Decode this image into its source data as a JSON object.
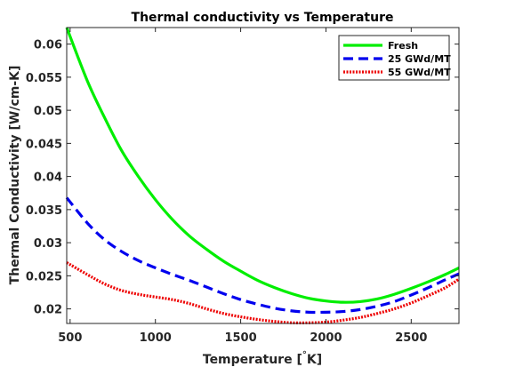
{
  "chart_data": {
    "type": "line",
    "title": "Thermal conductivity vs Temperature",
    "xlabel": "Temperature [",
    "xlabel_unit": "K]",
    "xlabel_symbol": "°",
    "ylabel": "Thermal Conductivity [W/cm-K]",
    "xlim": [
      480,
      2780
    ],
    "ylim": [
      0.0178,
      0.0625
    ],
    "xticks": [
      500,
      1000,
      1500,
      2000,
      2500
    ],
    "yticks": [
      0.02,
      0.025,
      0.03,
      0.035,
      0.04,
      0.045,
      0.05,
      0.055,
      0.06
    ],
    "ytick_labels": [
      "0.02",
      "0.025",
      "0.03",
      "0.035",
      "0.04",
      "0.045",
      "0.05",
      "0.055",
      "0.06"
    ],
    "xtick_labels": [
      "500",
      "1000",
      "1500",
      "2000",
      "2500"
    ],
    "legend_position": "top-right",
    "grid": false,
    "series": [
      {
        "name": "Fresh",
        "color": "#00ee00",
        "dash": "solid",
        "x": [
          480,
          600,
          700,
          800,
          900,
          1000,
          1100,
          1200,
          1300,
          1400,
          1500,
          1600,
          1700,
          1800,
          1900,
          2000,
          2100,
          2200,
          2300,
          2400,
          2500,
          2600,
          2700,
          2780
        ],
        "y": [
          0.0625,
          0.0545,
          0.049,
          0.044,
          0.04,
          0.0365,
          0.0335,
          0.031,
          0.029,
          0.0272,
          0.0257,
          0.0243,
          0.0232,
          0.0223,
          0.0216,
          0.0212,
          0.021,
          0.0211,
          0.0215,
          0.0222,
          0.0231,
          0.0241,
          0.0252,
          0.0262
        ]
      },
      {
        "name": "25 GWd/MT",
        "color": "#0000ee",
        "dash": "dashed",
        "x": [
          480,
          600,
          700,
          800,
          900,
          1000,
          1100,
          1200,
          1300,
          1400,
          1500,
          1600,
          1700,
          1800,
          1900,
          2000,
          2100,
          2200,
          2300,
          2400,
          2500,
          2600,
          2700,
          2780
        ],
        "y": [
          0.0368,
          0.033,
          0.0305,
          0.0287,
          0.0273,
          0.0262,
          0.0252,
          0.0243,
          0.0233,
          0.0223,
          0.0214,
          0.0207,
          0.0201,
          0.0197,
          0.0195,
          0.0195,
          0.0196,
          0.0199,
          0.0204,
          0.0211,
          0.0221,
          0.0232,
          0.0244,
          0.0253
        ]
      },
      {
        "name": "55 GWd/MT",
        "color": "#ee0000",
        "dash": "dotted",
        "x": [
          480,
          600,
          700,
          800,
          900,
          1000,
          1100,
          1200,
          1300,
          1400,
          1500,
          1600,
          1700,
          1800,
          1900,
          2000,
          2100,
          2200,
          2300,
          2400,
          2500,
          2600,
          2700,
          2780
        ],
        "y": [
          0.027,
          0.0252,
          0.0238,
          0.0228,
          0.0222,
          0.0218,
          0.0214,
          0.0208,
          0.02,
          0.0193,
          0.0188,
          0.0184,
          0.0181,
          0.0179,
          0.0179,
          0.018,
          0.0183,
          0.0187,
          0.0193,
          0.02,
          0.0209,
          0.022,
          0.0232,
          0.0245
        ]
      }
    ]
  }
}
